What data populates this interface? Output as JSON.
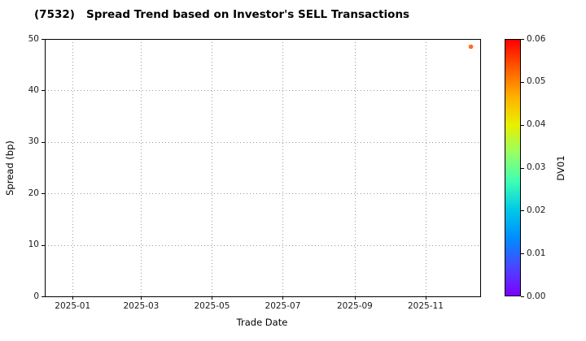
{
  "chart_data": {
    "type": "scatter",
    "title": "(7532)   Spread Trend based on Investor's SELL Transactions",
    "xlabel": "Trade Date",
    "ylabel": "Spread (bp)",
    "ylim": [
      0,
      50
    ],
    "yticks": [
      0,
      10,
      20,
      30,
      40,
      50
    ],
    "xlim": [
      "2024-12-08",
      "2025-12-18"
    ],
    "xticks": [
      {
        "date": "2025-01-01",
        "label": "2025-01"
      },
      {
        "date": "2025-03-01",
        "label": "2025-03"
      },
      {
        "date": "2025-05-01",
        "label": "2025-05"
      },
      {
        "date": "2025-07-01",
        "label": "2025-07"
      },
      {
        "date": "2025-09-01",
        "label": "2025-09"
      },
      {
        "date": "2025-11-01",
        "label": "2025-11"
      }
    ],
    "grid": true,
    "grid_color": "#9a9a9a",
    "axis_color": "#000000",
    "background": "#ffffff",
    "points": [
      {
        "x": "2025-12-10",
        "y": 48.5,
        "dv01": 0.05,
        "color": "#ff6b22"
      }
    ],
    "colorbar": {
      "label": "DV01",
      "min": 0.0,
      "max": 0.06,
      "ticks": [
        "0.00",
        "0.01",
        "0.02",
        "0.03",
        "0.04",
        "0.05",
        "0.06"
      ],
      "colors": [
        "#7d00ff",
        "#4a46ff",
        "#008cff",
        "#00c8e8",
        "#3cffb4",
        "#96ff64",
        "#e8f000",
        "#ffb000",
        "#ff5a00",
        "#ff0000"
      ]
    }
  }
}
